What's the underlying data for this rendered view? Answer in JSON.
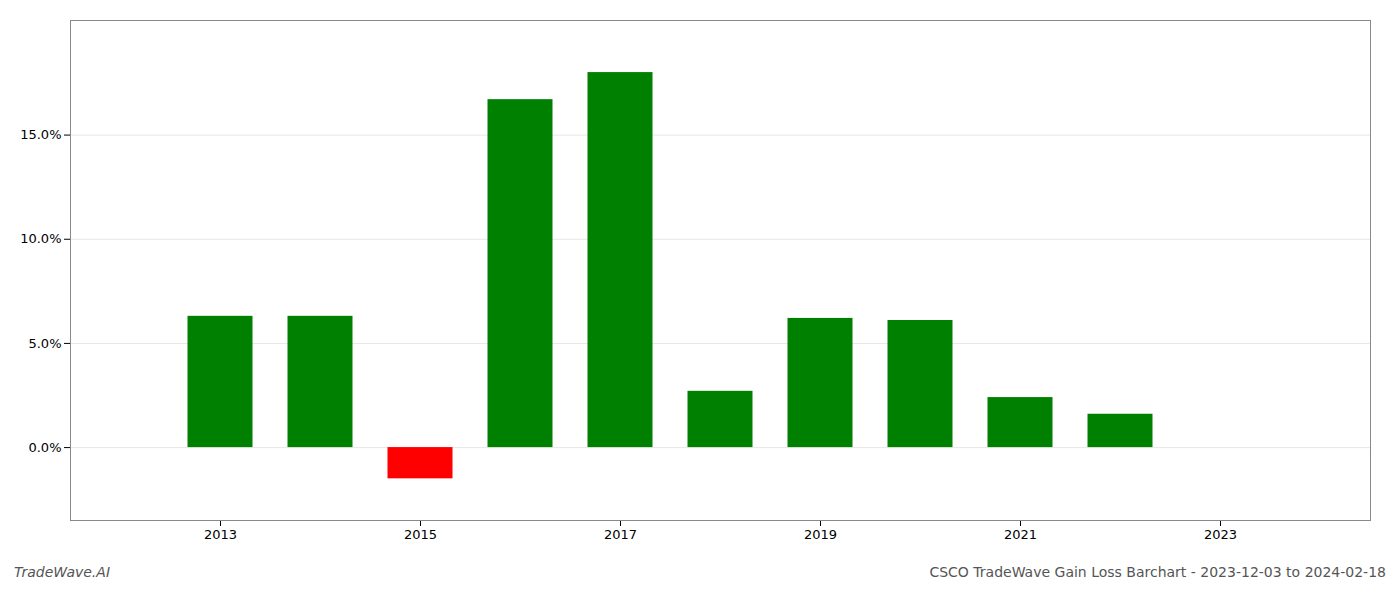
{
  "chart_data": {
    "type": "bar",
    "x": [
      2013,
      2014,
      2015,
      2016,
      2017,
      2018,
      2019,
      2020,
      2021,
      2022
    ],
    "values": [
      0.063,
      0.063,
      -0.015,
      0.167,
      0.18,
      0.027,
      0.062,
      0.061,
      0.024,
      0.016
    ],
    "colors": [
      "#008000",
      "#008000",
      "#ff0000",
      "#008000",
      "#008000",
      "#008000",
      "#008000",
      "#008000",
      "#008000",
      "#008000"
    ],
    "xlim": [
      2011.5,
      2024.5
    ],
    "xticks": [
      2013,
      2015,
      2017,
      2019,
      2021,
      2023
    ],
    "ylim": [
      -0.035,
      0.205
    ],
    "yticks": [
      {
        "value": 0.0,
        "label": "0.0%"
      },
      {
        "value": 0.05,
        "label": "5.0%"
      },
      {
        "value": 0.1,
        "label": "10.0%"
      },
      {
        "value": 0.15,
        "label": "15.0%"
      }
    ],
    "grid": true,
    "annotations": [
      "TradeWave.AI",
      "CSCO TradeWave Gain Loss Barchart - 2023-12-03 to 2024-02-18"
    ]
  }
}
